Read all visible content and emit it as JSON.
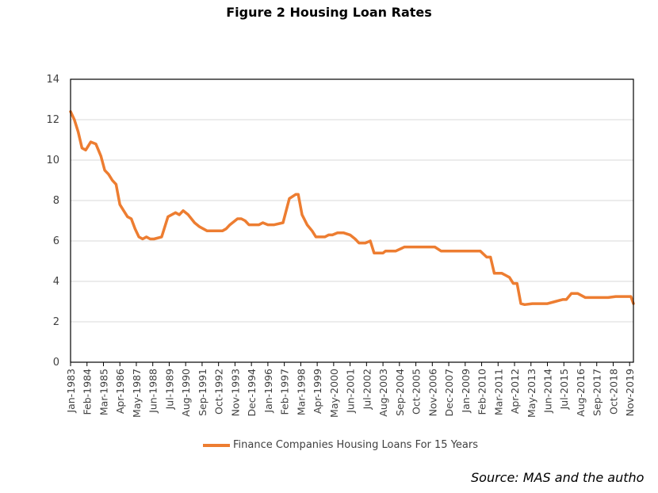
{
  "chart_data": {
    "type": "line",
    "title": "Figure 2 Housing Loan Rates",
    "xlabel": "",
    "ylabel": "",
    "ylim": [
      0,
      14
    ],
    "yticks": [
      0,
      2,
      4,
      6,
      8,
      10,
      12,
      14
    ],
    "grid": true,
    "legend_position": "bottom",
    "line_color": "#ED7D31",
    "x_tick_labels": [
      "Jan-1983",
      "Feb-1984",
      "Mar-1985",
      "Apr-1986",
      "May-1987",
      "Jun-1988",
      "Jul-1989",
      "Aug-1990",
      "Sep-1991",
      "Oct-1992",
      "Nov-1993",
      "Dec-1994",
      "Jan-1996",
      "Feb-1997",
      "Mar-1998",
      "Apr-1999",
      "May-2000",
      "Jun-2001",
      "Jul-2002",
      "Aug-2003",
      "Sep-2004",
      "Oct-2005",
      "Nov-2006",
      "Dec-2007",
      "Jan-2009",
      "Feb-2010",
      "Mar-2011",
      "Apr-2012",
      "May-2013",
      "Jun-2014",
      "Jul-2015",
      "Aug-2016",
      "Sep-2017",
      "Oct-2018",
      "Nov-2019"
    ],
    "series": [
      {
        "name": "Finance Companies Housing Loans For 15 Years",
        "x": [
          "1983-01",
          "1983-04",
          "1983-07",
          "1983-10",
          "1984-01",
          "1984-05",
          "1984-09",
          "1985-01",
          "1985-04",
          "1985-07",
          "1985-10",
          "1986-01",
          "1986-04",
          "1986-07",
          "1986-10",
          "1987-01",
          "1987-04",
          "1987-07",
          "1987-10",
          "1988-01",
          "1988-04",
          "1988-07",
          "1989-01",
          "1989-06",
          "1989-12",
          "1990-03",
          "1990-06",
          "1990-10",
          "1991-03",
          "1991-07",
          "1991-10",
          "1992-01",
          "1992-07",
          "1993-01",
          "1993-04",
          "1993-07",
          "1994-01",
          "1994-04",
          "1994-07",
          "1994-10",
          "1995-06",
          "1995-09",
          "1996-01",
          "1996-06",
          "1997-01",
          "1997-06",
          "1997-11",
          "1998-01",
          "1998-04",
          "1998-08",
          "1998-12",
          "1999-03",
          "1999-06",
          "1999-10",
          "2000-01",
          "2000-04",
          "2000-08",
          "2001-01",
          "2001-06",
          "2001-10",
          "2002-01",
          "2002-06",
          "2002-10",
          "2003-01",
          "2003-04",
          "2003-08",
          "2003-10",
          "2004-01",
          "2004-06",
          "2005-01",
          "2005-06",
          "2006-01",
          "2006-06",
          "2007-01",
          "2007-06",
          "2008-01",
          "2008-06",
          "2009-01",
          "2009-06",
          "2010-01",
          "2010-06",
          "2010-09",
          "2010-12",
          "2011-06",
          "2011-12",
          "2012-03",
          "2012-06",
          "2012-09",
          "2012-12",
          "2013-06",
          "2013-12",
          "2014-06",
          "2014-12",
          "2015-06",
          "2015-09",
          "2016-01",
          "2016-06",
          "2016-12",
          "2017-06",
          "2017-12",
          "2018-06",
          "2018-12",
          "2019-06",
          "2019-12",
          "2020-02"
        ],
        "values": [
          12.4,
          12.0,
          11.4,
          10.6,
          10.5,
          10.9,
          10.8,
          10.2,
          9.5,
          9.3,
          9.0,
          8.8,
          7.8,
          7.5,
          7.2,
          7.1,
          6.6,
          6.2,
          6.1,
          6.2,
          6.1,
          6.1,
          6.2,
          7.2,
          7.4,
          7.3,
          7.5,
          7.3,
          6.9,
          6.7,
          6.6,
          6.5,
          6.5,
          6.5,
          6.6,
          6.8,
          7.1,
          7.1,
          7.0,
          6.8,
          6.8,
          6.9,
          6.8,
          6.8,
          6.9,
          8.1,
          8.3,
          8.3,
          7.3,
          6.8,
          6.5,
          6.2,
          6.2,
          6.2,
          6.3,
          6.3,
          6.4,
          6.4,
          6.3,
          6.1,
          5.9,
          5.9,
          6.0,
          5.4,
          5.4,
          5.4,
          5.5,
          5.5,
          5.5,
          5.7,
          5.7,
          5.7,
          5.7,
          5.7,
          5.5,
          5.5,
          5.5,
          5.5,
          5.5,
          5.5,
          5.2,
          5.2,
          4.4,
          4.4,
          4.2,
          3.9,
          3.9,
          2.9,
          2.85,
          2.9,
          2.9,
          2.9,
          3.0,
          3.1,
          3.1,
          3.4,
          3.4,
          3.2,
          3.2,
          3.2,
          3.2,
          3.25,
          3.25,
          3.25,
          2.9
        ]
      }
    ]
  },
  "source_text": "Source: MAS and the autho"
}
